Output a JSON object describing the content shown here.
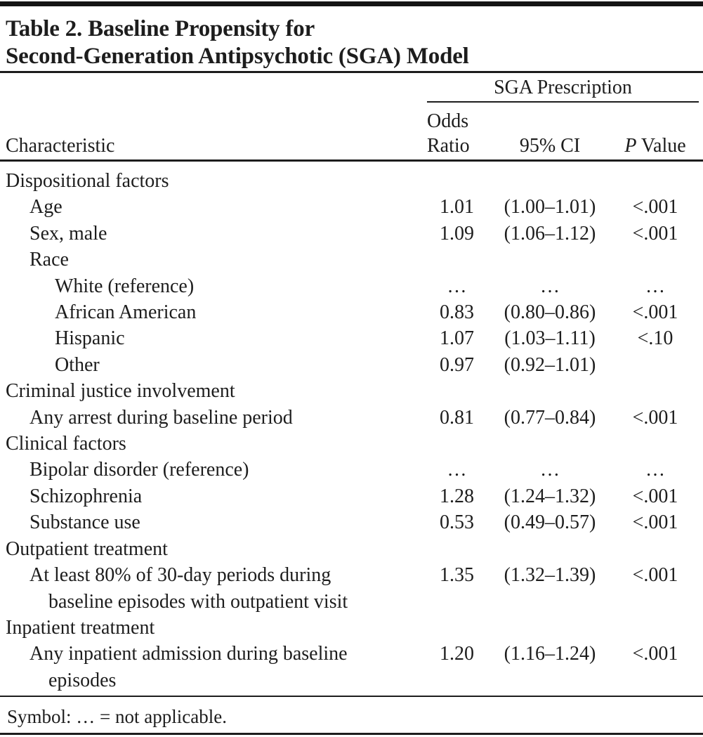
{
  "title": {
    "line1": "Table 2. Baseline Propensity for",
    "line2": "Second-Generation Antipsychotic (SGA) Model"
  },
  "header": {
    "group_label": "SGA Prescription",
    "characteristic": "Characteristic",
    "odds_line1": "Odds",
    "odds_line2": "Ratio",
    "ci": "95% CI",
    "p_italic": "P",
    "p_rest": " Value"
  },
  "rows": [
    {
      "label": "Dispositional factors",
      "indent": 0,
      "or": "",
      "ci": "",
      "p": ""
    },
    {
      "label": "Age",
      "indent": 1,
      "or": "1.01",
      "ci": "(1.00–1.01)",
      "p": "<.001"
    },
    {
      "label": "Sex, male",
      "indent": 1,
      "or": "1.09",
      "ci": "(1.06–1.12)",
      "p": "<.001"
    },
    {
      "label": "Race",
      "indent": 1,
      "or": "",
      "ci": "",
      "p": ""
    },
    {
      "label": "White (reference)",
      "indent": 2,
      "or": "…",
      "ci": "…",
      "p": "…"
    },
    {
      "label": "African American",
      "indent": 2,
      "or": "0.83",
      "ci": "(0.80–0.86)",
      "p": "<.001"
    },
    {
      "label": "Hispanic",
      "indent": 2,
      "or": "1.07",
      "ci": "(1.03–1.11)",
      "p": "<.10"
    },
    {
      "label": "Other",
      "indent": 2,
      "or": "0.97",
      "ci": "(0.92–1.01)",
      "p": ""
    },
    {
      "label": "Criminal justice involvement",
      "indent": 0,
      "or": "",
      "ci": "",
      "p": ""
    },
    {
      "label": "Any arrest during baseline period",
      "indent": 1,
      "or": "0.81",
      "ci": "(0.77–0.84)",
      "p": "<.001"
    },
    {
      "label": "Clinical factors",
      "indent": 0,
      "or": "",
      "ci": "",
      "p": ""
    },
    {
      "label": "Bipolar disorder (reference)",
      "indent": 1,
      "or": "…",
      "ci": "…",
      "p": "…"
    },
    {
      "label": "Schizophrenia",
      "indent": 1,
      "or": "1.28",
      "ci": "(1.24–1.32)",
      "p": "<.001"
    },
    {
      "label": "Substance use",
      "indent": 1,
      "or": "0.53",
      "ci": "(0.49–0.57)",
      "p": "<.001"
    },
    {
      "label": "Outpatient treatment",
      "indent": 0,
      "or": "",
      "ci": "",
      "p": ""
    },
    {
      "label": "At least 80% of 30-day periods during",
      "label2": "baseline episodes with outpatient visit",
      "indent": 1,
      "or": "1.35",
      "ci": "(1.32–1.39)",
      "p": "<.001"
    },
    {
      "label": "Inpatient treatment",
      "indent": 0,
      "or": "",
      "ci": "",
      "p": ""
    },
    {
      "label": "Any inpatient admission during baseline",
      "label2": "episodes",
      "indent": 1,
      "or": "1.20",
      "ci": "(1.16–1.24)",
      "p": "<.001"
    }
  ],
  "footnote": "Symbol: … = not applicable.",
  "colors": {
    "text": "#1d1d1d",
    "rule": "#1d1d1d",
    "top_bar": "#141414",
    "background": "#ffffff"
  }
}
